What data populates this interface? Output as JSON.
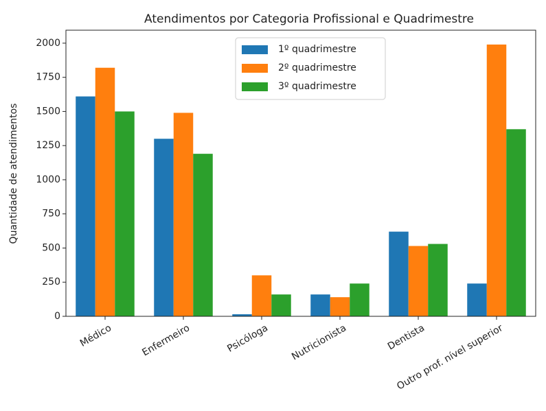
{
  "chart_data": {
    "type": "bar",
    "title": "Atendimentos por Categoria Profissional e Quadrimestre",
    "y_label": "Quantidade de atendimentos",
    "categories": [
      "Médico",
      "Enfermeiro",
      "Psicóloga",
      "Nutricionista",
      "Dentista",
      "Outro prof. nível superior"
    ],
    "series": [
      {
        "name": "1º quadrimestre",
        "color": "#1f77b4",
        "values": [
          1610,
          1300,
          15,
          160,
          620,
          240
        ]
      },
      {
        "name": "2º quadrimestre",
        "color": "#ff7f0e",
        "values": [
          1820,
          1490,
          300,
          140,
          515,
          1990
        ]
      },
      {
        "name": "3º quadrimestre",
        "color": "#2ca02c",
        "values": [
          1500,
          1190,
          160,
          240,
          530,
          1370
        ]
      }
    ],
    "ylim": [
      0,
      2095
    ],
    "yticks": [
      0,
      250,
      500,
      750,
      1000,
      1250,
      1500,
      1750,
      2000
    ],
    "legend": "upper center"
  }
}
